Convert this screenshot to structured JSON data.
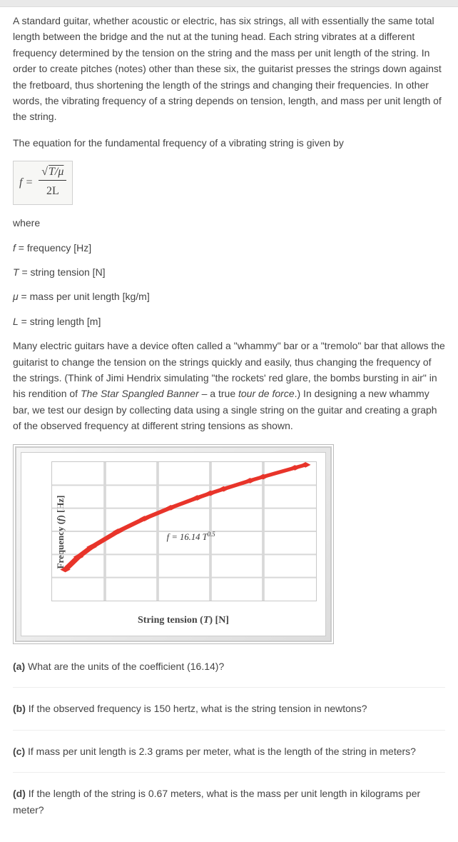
{
  "intro": "A standard guitar, whether acoustic or electric, has six strings, all with essentially the same total length between the bridge and the nut at the tuning head. Each string vibrates at a different frequency determined by the tension on the string and the mass per unit length of the string. In order to create pitches (notes) other than these six, the guitarist presses the strings down against the fretboard, thus shortening the length of the strings and changing their frequencies. In other words, the vibrating frequency of a string depends on tension, length, and mass per unit length of the string.",
  "eqn_intro": "The equation for the fundamental frequency of a vibrating string is given by",
  "equation": {
    "lhs": "f =",
    "num_sqrt": "√",
    "num_inside": "T/μ",
    "den": "2L"
  },
  "where_label": "where",
  "defs": {
    "f": "f = frequency [Hz]",
    "T": "T = string tension [N]",
    "mu": "μ = mass per unit length [kg/m]",
    "L": "L = string length [m]"
  },
  "whammy": {
    "p1_a": "Many electric guitars have a device often called a \"whammy\" bar or a \"tremolo\" bar that allows the guitarist to change the tension on the strings quickly and easily, thus changing the frequency of the strings. (Think of Jimi Hendrix simulating \"the rockets' red glare, the bombs bursting in air\" in his rendition of ",
    "title": "The Star Spangled Banner",
    "p1_b": " – a true ",
    "tour": "tour de force",
    "p1_c": ".) In designing a new whammy bar, we test our design by collecting data using a single string on the guitar and creating a graph of the observed frequency at different string tensions as shown."
  },
  "chart": {
    "ylabel_a": "Frequency (",
    "ylabel_f": "f",
    "ylabel_b": ") [Hz]",
    "xlabel_a": "String tension (",
    "xlabel_T": "T",
    "xlabel_b": ") [N]",
    "eqn_a": "f = 16.14 T",
    "eqn_exp": "0.5",
    "line_color": "#e8342a",
    "points_xy": [
      [
        0.05,
        0.224
      ],
      [
        0.1,
        0.316
      ],
      [
        0.15,
        0.387
      ],
      [
        0.25,
        0.5
      ],
      [
        0.35,
        0.592
      ],
      [
        0.45,
        0.671
      ],
      [
        0.55,
        0.742
      ],
      [
        0.6,
        0.775
      ],
      [
        0.65,
        0.806
      ],
      [
        0.75,
        0.866
      ],
      [
        0.8,
        0.894
      ],
      [
        0.92,
        0.959
      ],
      [
        0.96,
        0.98
      ]
    ]
  },
  "questions": {
    "a_label": "(a)",
    "a": " What are the units of the coefficient (16.14)?",
    "b_label": "(b)",
    "b": " If the observed frequency is 150 hertz, what is the string tension in newtons?",
    "c_label": "(c)",
    "c": " If mass per unit length is 2.3 grams per meter, what is the length of the string in meters?",
    "d_label": "(d)",
    "d": " If the length of the string is 0.67 meters, what is the mass per unit length in kilograms per meter?"
  }
}
